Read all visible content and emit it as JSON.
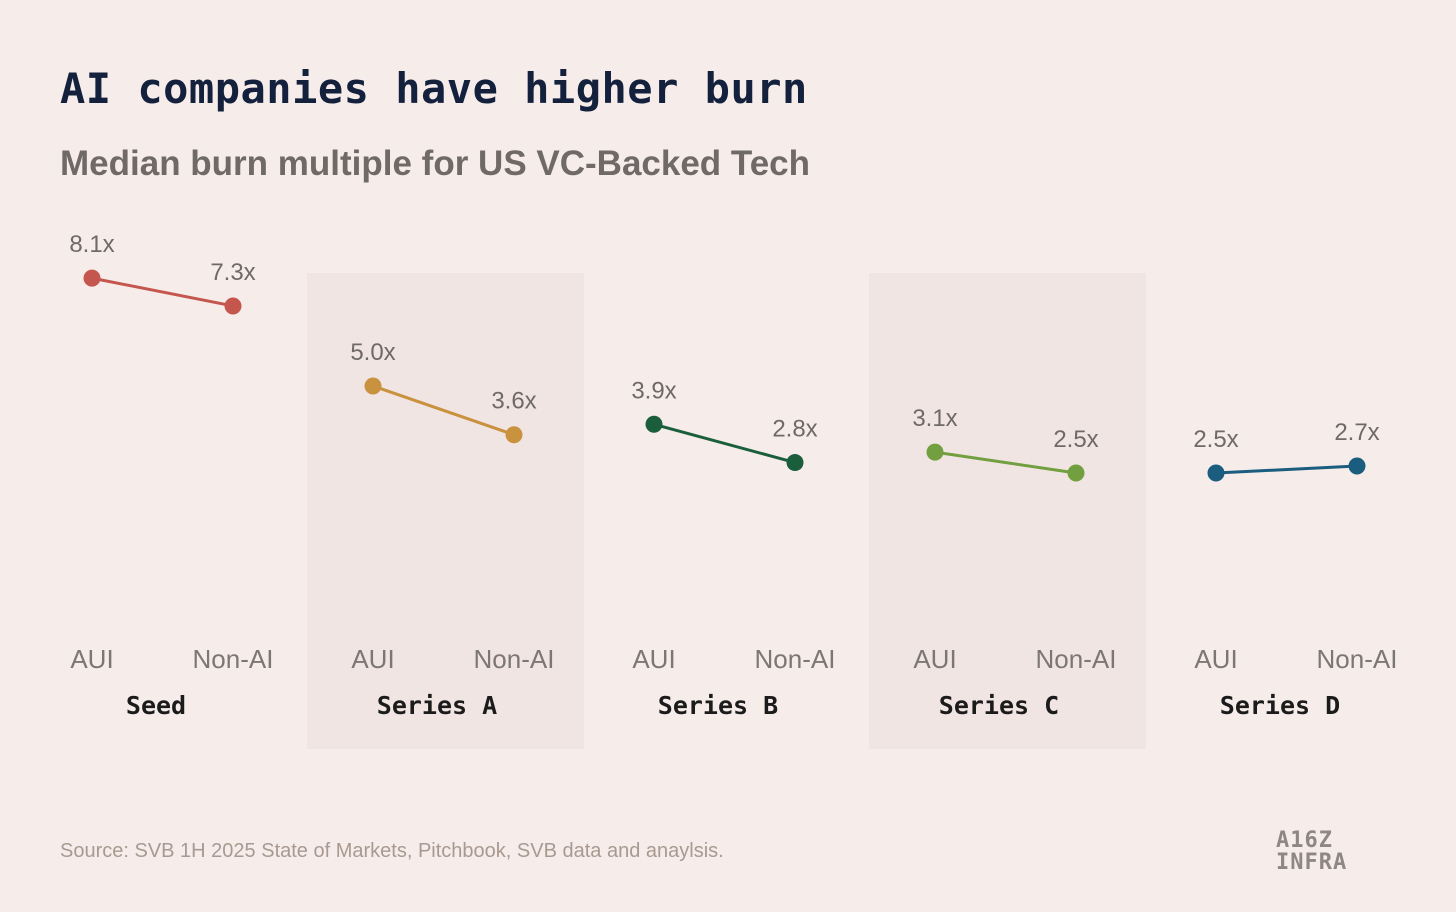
{
  "title": "AI companies have higher burn",
  "subtitle": "Median burn multiple for US VC-Backed Tech",
  "source": "Source: SVB 1H 2025 State of Markets, Pitchbook, SVB data and anaylsis.",
  "logo": {
    "line1": "A16Z",
    "line2": "INFRA"
  },
  "chart_data": {
    "type": "line",
    "title": "AI companies have higher burn",
    "subtitle": "Median burn multiple for US VC-Backed Tech",
    "xlabel": "",
    "ylabel": "",
    "categories": [
      "AUI",
      "Non-AI"
    ],
    "grid": false,
    "groups": [
      {
        "name": "Seed",
        "labels": [
          "8.1x",
          "7.3x"
        ],
        "values": [
          8.1,
          7.3
        ],
        "color": "#c4564d",
        "shaded": false
      },
      {
        "name": "Series A",
        "labels": [
          "5.0x",
          "3.6x"
        ],
        "values": [
          5.0,
          3.6
        ],
        "color": "#c9923f",
        "shaded": true
      },
      {
        "name": "Series B",
        "labels": [
          "3.9x",
          "2.8x"
        ],
        "values": [
          3.9,
          2.8
        ],
        "color": "#1b5e3b",
        "shaded": false
      },
      {
        "name": "Series C",
        "labels": [
          "3.1x",
          "2.5x"
        ],
        "values": [
          3.1,
          2.5
        ],
        "color": "#72a040",
        "shaded": true
      },
      {
        "name": "Series D",
        "labels": [
          "2.5x",
          "2.7x"
        ],
        "values": [
          2.5,
          2.7
        ],
        "color": "#1b5d7e",
        "shaded": false
      }
    ]
  }
}
